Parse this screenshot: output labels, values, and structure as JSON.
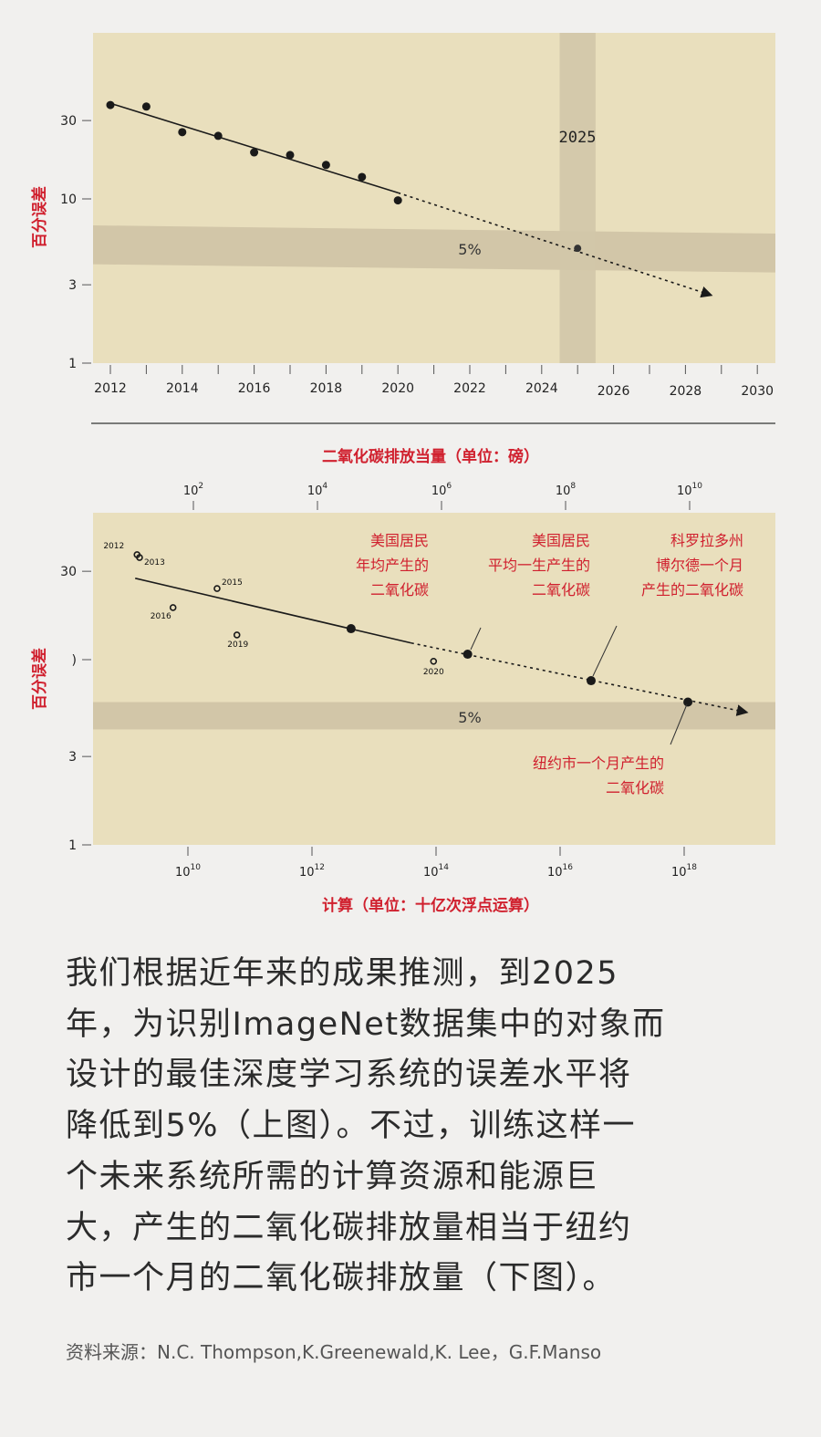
{
  "chart_data": [
    {
      "type": "scatter",
      "ylabel": "百分误差",
      "yscale": "log",
      "ylim": [
        1,
        100
      ],
      "xlim": [
        2011.5,
        2030.5
      ],
      "yticks": [
        "1",
        "3",
        "10",
        "30"
      ],
      "xticks": [
        "2012",
        "2014",
        "2016",
        "2018",
        "2020",
        "2022",
        "2024",
        "2026",
        "2028",
        "2030"
      ],
      "points": [
        {
          "x": 2012,
          "y": 37.3
        },
        {
          "x": 2013,
          "y": 36.5
        },
        {
          "x": 2014,
          "y": 25.5
        },
        {
          "x": 2015,
          "y": 24.2
        },
        {
          "x": 2016,
          "y": 19.2
        },
        {
          "x": 2017,
          "y": 18.5
        },
        {
          "x": 2018,
          "y": 16.1
        },
        {
          "x": 2019,
          "y": 13.6
        },
        {
          "x": 2020,
          "y": 9.8
        }
      ],
      "projection_point": {
        "x": 2025,
        "y": 5
      },
      "trend_solid": [
        {
          "x": 2012,
          "y": 38.2
        },
        {
          "x": 2020,
          "y": 10.9
        }
      ],
      "trend_dashed": [
        {
          "x": 2020,
          "y": 10.9
        },
        {
          "x": 2028.7,
          "y": 2.6
        }
      ],
      "target_band_label": "5%",
      "target_band": [
        4.0,
        6.9
      ],
      "year_band_label": "2025",
      "year_band": [
        2024.5,
        2025.5
      ],
      "grid": false
    },
    {
      "type": "scatter",
      "ylabel": "百分误差",
      "xlabel": "计算（单位：十亿次浮点运算）",
      "x2label": "二氧化碳排放当量（单位：磅）",
      "xscale": "log",
      "yscale": "log",
      "ylim": [
        1,
        62
      ],
      "yticks": [
        "1",
        "3",
        ")",
        "30"
      ],
      "xticks": [
        {
          "base": "10",
          "exp": "10"
        },
        {
          "base": "10",
          "exp": "12"
        },
        {
          "base": "10",
          "exp": "14"
        },
        {
          "base": "10",
          "exp": "16"
        },
        {
          "base": "10",
          "exp": "18"
        }
      ],
      "x2ticks": [
        {
          "base": "10",
          "exp": "2"
        },
        {
          "base": "10",
          "exp": "4"
        },
        {
          "base": "10",
          "exp": "6"
        },
        {
          "base": "10",
          "exp": "8"
        },
        {
          "base": "10",
          "exp": "10"
        }
      ],
      "observed": [
        {
          "label": "2012",
          "log10_x": 9.18,
          "y": 36.9
        },
        {
          "label": "2013",
          "log10_x": 9.22,
          "y": 35.6
        },
        {
          "label": "2015",
          "log10_x": 10.47,
          "y": 24.2
        },
        {
          "label": "2016",
          "log10_x": 9.76,
          "y": 19.1
        },
        {
          "label": "2019",
          "log10_x": 10.79,
          "y": 13.6
        },
        {
          "label": "2020",
          "log10_x": 13.96,
          "y": 9.8
        }
      ],
      "trend_points": [
        {
          "log10_x": 12.63,
          "y": 14.7
        },
        {
          "log10_x": 14.51,
          "y": 10.7
        },
        {
          "log10_x": 16.5,
          "y": 7.7
        },
        {
          "log10_x": 18.06,
          "y": 5.9
        }
      ],
      "trend_solid": [
        {
          "log10_x": 9.15,
          "y": 27.5
        },
        {
          "log10_x": 13.6,
          "y": 12.3
        }
      ],
      "trend_dashed": [
        {
          "log10_x": 13.6,
          "y": 12.3
        },
        {
          "log10_x": 19.0,
          "y": 5.2
        }
      ],
      "target_band_label": "5%",
      "target_band": [
        4.2,
        5.9
      ],
      "annotations": [
        {
          "lines": [
            "美国居民",
            "年均产生的",
            "二氧化碳"
          ]
        },
        {
          "lines": [
            "美国居民",
            "平均一生产生的",
            "二氧化碳"
          ]
        },
        {
          "lines": [
            "科罗拉多州",
            "博尔德一个月",
            "产生的二氧化碳"
          ]
        },
        {
          "lines": [
            "纽约市一个月产生的",
            "二氧化碳"
          ]
        }
      ],
      "grid": false
    }
  ],
  "colors": {
    "background": "#f1f0ee",
    "plot": "#e9dfbd",
    "band": "#d2c6a8",
    "accent_red": "#d0202e",
    "ink": "#1a1a1a"
  },
  "caption": {
    "lines": [
      "我们根据近年来的成果推测，到2025",
      "年，为识别ImageNet数据集中的对象而",
      "设计的最佳深度学习系统的误差水平将",
      "降低到5%（上图）。不过，训练这样一",
      "个未来系统所需的计算资源和能源巨",
      "大，产生的二氧化碳排放量相当于纽约",
      "市一个月的二氧化碳排放量（下图）。"
    ],
    "source": "资料来源：N.C. Thompson,K.Greenewald,K. Lee，G.F.Manso"
  }
}
